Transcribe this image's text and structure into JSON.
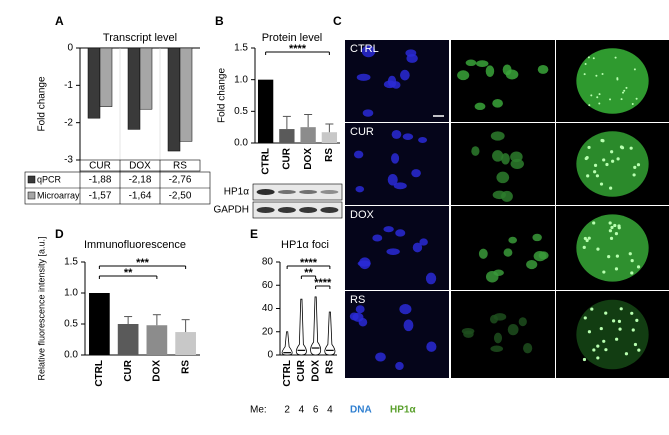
{
  "chart_data": [
    {
      "type": "bar",
      "label": "A",
      "title": "Transcript level",
      "y_label": "Fold change",
      "categories": [
        "CUR",
        "DOX",
        "RS"
      ],
      "series": [
        {
          "name": "qPCR",
          "color": "#3a3a3a",
          "values": [
            -1.88,
            -2.18,
            -2.76
          ],
          "value_labels": [
            "-1,88",
            "-2,18",
            "-2,76"
          ]
        },
        {
          "name": "Microarray",
          "color": "#a6a6a6",
          "values": [
            -1.57,
            -1.64,
            -2.5
          ],
          "value_labels": [
            "-1,57",
            "-1,64",
            "-2,50"
          ]
        }
      ],
      "ylim": [
        -3,
        0
      ],
      "yticks": [
        0,
        -1,
        -2,
        -3
      ]
    },
    {
      "type": "bar",
      "label": "B",
      "title": "Protein level",
      "y_label": "Fold change",
      "categories": [
        "CTRL",
        "CUR",
        "DOX",
        "RS"
      ],
      "values": [
        1.0,
        0.22,
        0.25,
        0.17
      ],
      "errors": [
        0,
        0.2,
        0.2,
        0.13
      ],
      "colors": [
        "#000000",
        "#5a5a5a",
        "#8c8c8c",
        "#c8c8c8"
      ],
      "ylim": [
        0,
        1.5
      ],
      "yticks": [
        {
          "value": 0,
          "label": "0.0"
        },
        {
          "value": 0.5,
          "label": "0.5"
        },
        {
          "value": 1,
          "label": "1.0"
        },
        {
          "value": 1.5,
          "label": "1.5"
        }
      ],
      "annotations": [
        "****"
      ],
      "blot_labels": [
        "HP1α",
        "GAPDH"
      ]
    },
    {
      "type": "bar",
      "label": "D",
      "title": "Immunofluorescence",
      "y_label": "Relative fluorescence intensity [a.u.]",
      "categories": [
        "CTRL",
        "CUR",
        "DOX",
        "RS"
      ],
      "values": [
        1.0,
        0.5,
        0.48,
        0.37
      ],
      "errors": [
        0,
        0.12,
        0.17,
        0.2
      ],
      "colors": [
        "#000000",
        "#5a5a5a",
        "#8c8c8c",
        "#c8c8c8"
      ],
      "ylim": [
        0,
        1.5
      ],
      "yticks": [
        {
          "value": 0,
          "label": "0.0"
        },
        {
          "value": 0.5,
          "label": "0.5"
        },
        {
          "value": 1,
          "label": "1.0"
        },
        {
          "value": 1.5,
          "label": "1.5"
        }
      ],
      "annotations": [
        "***",
        "**"
      ]
    },
    {
      "type": "violin",
      "label": "E",
      "title": "HP1α foci",
      "categories": [
        "CTRL",
        "CUR",
        "DOX",
        "RS"
      ],
      "medians": [
        2,
        4,
        6,
        4
      ],
      "max": [
        20,
        48,
        50,
        37
      ],
      "median_label": "Me:",
      "ylim": [
        0,
        80
      ],
      "yticks": [
        0,
        20,
        40,
        60,
        80
      ],
      "annotations": [
        "****",
        "**",
        "****"
      ]
    }
  ],
  "microscopy": {
    "label": "C",
    "rows": [
      "CTRL",
      "CUR",
      "DOX",
      "RS"
    ],
    "channels": [
      "DNA",
      "HP1α"
    ]
  }
}
